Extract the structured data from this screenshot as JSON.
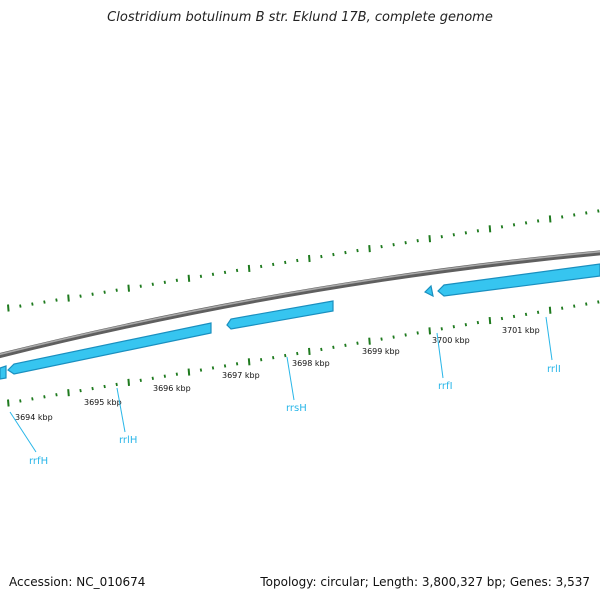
{
  "title": "Clostridium botulinum B str. Eklund 17B, complete genome",
  "accession": "Accession: NC_010674",
  "topology": "Topology: circular; Length: 3,800,327 bp; Genes: 3,537",
  "ticks": [
    {
      "label": "3694 kbp"
    },
    {
      "label": "3695 kbp"
    },
    {
      "label": "3696 kbp"
    },
    {
      "label": "3697 kbp"
    },
    {
      "label": "3698 kbp"
    },
    {
      "label": "3699 kbp"
    },
    {
      "label": "3700 kbp"
    },
    {
      "label": "3701 kbp"
    }
  ],
  "genes": [
    {
      "name": "rrfH"
    },
    {
      "name": "rrlH"
    },
    {
      "name": "rrsH"
    },
    {
      "name": "rrfI"
    },
    {
      "name": "rrlI"
    }
  ],
  "colors": {
    "gene": "#36c5f0",
    "gene_dark": "#1a8fbf",
    "backbone": "#8a8a8a",
    "tick": "#1e7a1e",
    "label": "#29b6e8"
  }
}
